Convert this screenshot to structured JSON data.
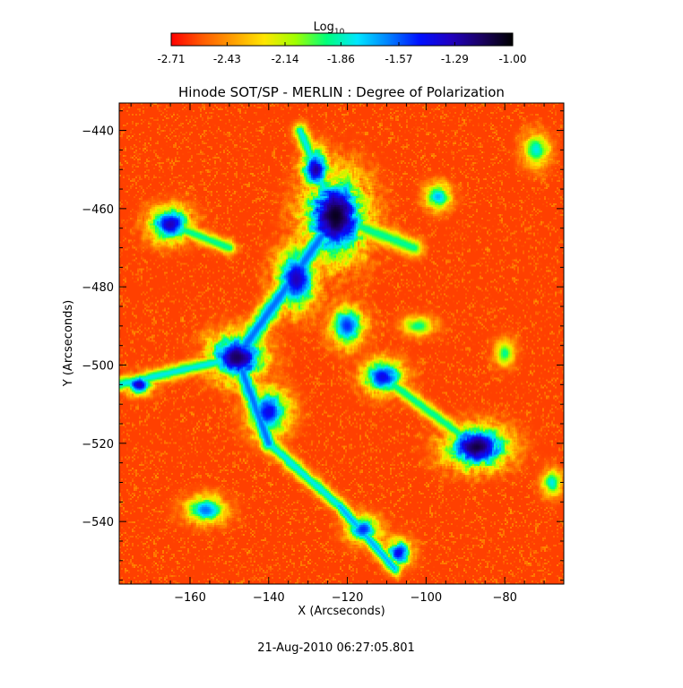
{
  "chart_data": {
    "type": "heatmap",
    "title": "Hinode SOT/SP - MERLIN : Degree of Polarization",
    "xlabel": "X (Arcseconds)",
    "ylabel": "Y (Arcseconds)",
    "xlim": [
      -178,
      -65
    ],
    "ylim": [
      -556,
      -433
    ],
    "x_ticks": [
      -160,
      -140,
      -120,
      -100,
      -80
    ],
    "y_ticks": [
      -440,
      -460,
      -480,
      -500,
      -520,
      -540
    ],
    "colorbar": {
      "label_base": "Log",
      "label_sub": "10",
      "range": [
        -2.71,
        -1.0
      ],
      "ticks": [
        -2.71,
        -2.43,
        -2.14,
        -1.86,
        -1.57,
        -1.29,
        -1.0
      ],
      "tick_labels": [
        "-2.71",
        "-2.43",
        "-2.14",
        "-1.86",
        "-1.57",
        "-1.29",
        "-1.00"
      ],
      "colormap": [
        "#ff0000",
        "#ff5a00",
        "#ffa000",
        "#ffe600",
        "#a0ff00",
        "#00ff7a",
        "#00e6ff",
        "#0080ff",
        "#0010ff",
        "#2000c0",
        "#1a0060",
        "#000000"
      ]
    },
    "background_level": -2.6,
    "regions": [
      {
        "x": -123,
        "y": -462,
        "rx": 9,
        "ry": 12,
        "peak": -1.05
      },
      {
        "x": -128,
        "y": -450,
        "rx": 4,
        "ry": 6,
        "peak": -1.25
      },
      {
        "x": -133,
        "y": -478,
        "rx": 6,
        "ry": 9,
        "peak": -1.3
      },
      {
        "x": -148,
        "y": -498,
        "rx": 8,
        "ry": 7,
        "peak": -1.15
      },
      {
        "x": -140,
        "y": -512,
        "rx": 6,
        "ry": 7,
        "peak": -1.4
      },
      {
        "x": -120,
        "y": -490,
        "rx": 5,
        "ry": 6,
        "peak": -1.5
      },
      {
        "x": -111,
        "y": -503,
        "rx": 6,
        "ry": 5,
        "peak": -1.4
      },
      {
        "x": -165,
        "y": -464,
        "rx": 6,
        "ry": 5,
        "peak": -1.3
      },
      {
        "x": -173,
        "y": -505,
        "rx": 4,
        "ry": 3,
        "peak": -1.3
      },
      {
        "x": -87,
        "y": -521,
        "rx": 9,
        "ry": 6,
        "peak": -1.1
      },
      {
        "x": -116,
        "y": -542,
        "rx": 5,
        "ry": 4,
        "peak": -1.5
      },
      {
        "x": -107,
        "y": -548,
        "rx": 4,
        "ry": 4,
        "peak": -1.4
      },
      {
        "x": -72,
        "y": -445,
        "rx": 4,
        "ry": 5,
        "peak": -1.8
      },
      {
        "x": -97,
        "y": -457,
        "rx": 4,
        "ry": 4,
        "peak": -1.7
      },
      {
        "x": -156,
        "y": -537,
        "rx": 6,
        "ry": 4,
        "peak": -1.6
      },
      {
        "x": -102,
        "y": -490,
        "rx": 5,
        "ry": 3,
        "peak": -1.9
      },
      {
        "x": -80,
        "y": -497,
        "rx": 3,
        "ry": 4,
        "peak": -1.9
      },
      {
        "x": -68,
        "y": -530,
        "rx": 3,
        "ry": 4,
        "peak": -1.8
      }
    ],
    "filaments": [
      {
        "x1": -123,
        "y1": -462,
        "x2": -148,
        "y2": -498,
        "w": 3,
        "peak": -1.6
      },
      {
        "x1": -148,
        "y1": -498,
        "x2": -140,
        "y2": -520,
        "w": 2.5,
        "peak": -1.6
      },
      {
        "x1": -140,
        "y1": -520,
        "x2": -122,
        "y2": -536,
        "w": 2,
        "peak": -1.8
      },
      {
        "x1": -122,
        "y1": -536,
        "x2": -108,
        "y2": -552,
        "w": 2,
        "peak": -1.7
      },
      {
        "x1": -123,
        "y1": -462,
        "x2": -103,
        "y2": -470,
        "w": 2.5,
        "peak": -1.9
      },
      {
        "x1": -148,
        "y1": -498,
        "x2": -178,
        "y2": -505,
        "w": 2,
        "peak": -1.8
      },
      {
        "x1": -165,
        "y1": -464,
        "x2": -150,
        "y2": -470,
        "w": 2,
        "peak": -1.9
      },
      {
        "x1": -87,
        "y1": -521,
        "x2": -111,
        "y2": -503,
        "w": 2,
        "peak": -1.9
      },
      {
        "x1": -123,
        "y1": -462,
        "x2": -132,
        "y2": -440,
        "w": 2,
        "peak": -1.8
      }
    ],
    "timestamp": "21-Aug-2010 06:27:05.801"
  }
}
